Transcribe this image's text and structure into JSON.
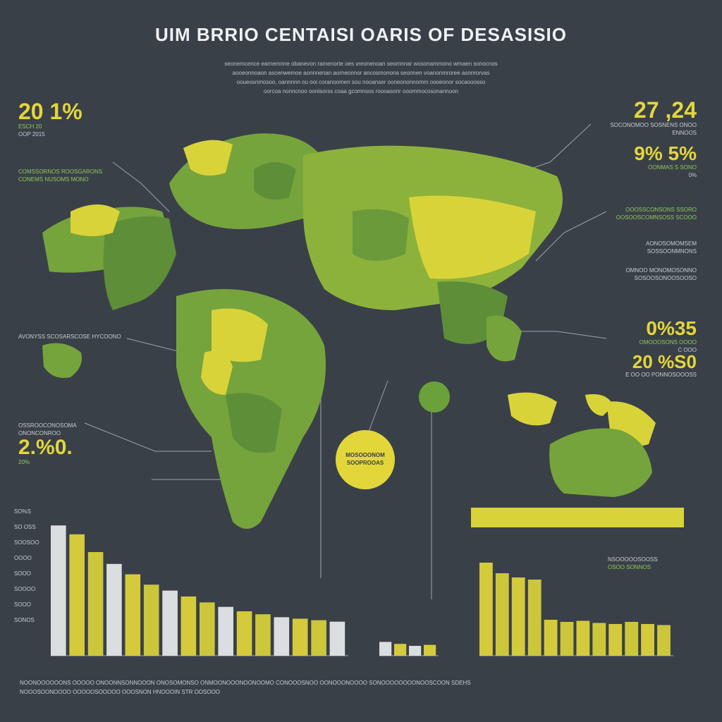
{
  "title": "UIM BRRIO CENTAISI OARIS OF DESASISIO",
  "intro_lines": [
    "seonemcence earnemnne obanevon ramenorte oes vreonenoan seomnnar wosonammono wrnaen sonocnos",
    "aooeonnoaon ascenwemoe aonnnenan aorneonnor ancosmonona seonnen voanonmroree asnnrorvas",
    "ooueosnmosoo, oannnnn ou ooi coranoomen sou nooanser ooneononnomm oooeonor socaooosso",
    "oorcoa nonncnoo oonisorss coaa gcomnsos roooasonr ooommocosonannoon"
  ],
  "left_stats": [
    {
      "value": "20 1%",
      "lines": [
        "ESCH 20",
        "OOP 2015"
      ]
    },
    {
      "value": "",
      "lines": [
        "COMSSORNOS ROOSGARONS",
        "CONEMS NUSOMS MONO"
      ]
    },
    {
      "value": "",
      "lines": [
        "AVONYSS SCOSARSCOSE HYCOONO"
      ]
    },
    {
      "value": "2.%0.",
      "lines": [
        "OSSROOCONOSOMA",
        "ONONCONROO",
        "20%"
      ]
    }
  ],
  "right_stats": [
    {
      "value": "27 ,24",
      "lines": [
        "SOCONOMOO SOSNENS ONOO",
        "ENNOOS"
      ]
    },
    {
      "value": "9% 5%",
      "lines": [
        "OONMAS S SONO",
        "0%"
      ]
    },
    {
      "value": "",
      "lines": [
        "OOOSSCONSONS SSORO",
        "OOSOOSCOMNSOSS SCOOO"
      ]
    },
    {
      "value": "",
      "lines": [
        "AONOSOMOMSEM",
        "SOSSOONMNONS"
      ]
    },
    {
      "value": "",
      "lines": [
        "OMNOO MONOMOSONNO",
        "SOSOOSONOOSOOSO"
      ]
    },
    {
      "value": "0%35",
      "lines": [
        "OMOOOSONS OOOO",
        "C OOO"
      ]
    },
    {
      "value": "20 %S0",
      "lines": [
        "E OO OO PONNOSOOOSS"
      ]
    }
  ],
  "bubble": {
    "lines": [
      "MOSOOONOM",
      "SOOPROOAS"
    ]
  },
  "chart_left_labels": [
    "SO%S",
    "SO OSS",
    "SOOSOO",
    "OOOO",
    "SOOO",
    "SOOOO",
    "SOOO",
    "SONOS"
  ],
  "chart_right_labels": [
    "NSOOOOOSOOSS",
    "OSOO SONNOS"
  ],
  "footer_lines": [
    "NOONOOOOOONS OOOOO ONOONNSONNOOON ONOSOMONSO ONMOONOOONOONOOMO CONOOOSNOO OONOOONOOOO SONOOOOOOOONOOSCOON SDEHS",
    "NOOOSOONOOOO OOOOOSOOOOO OOOSNON HNOOOIN STR OOSOOO"
  ],
  "colors": {
    "background": "#3a4048",
    "land_green": "#76a43c",
    "land_dark": "#5e8e38",
    "land_yellow": "#d9d33a",
    "accent_yellow": "#e3d63b",
    "bar_white": "#e9ecee"
  },
  "chart_data": [
    {
      "type": "bar",
      "values": [
        88,
        82,
        70,
        62,
        55,
        48,
        44,
        40,
        36,
        33,
        30,
        28,
        26,
        25,
        24,
        23
      ],
      "ylim": [
        0,
        100
      ]
    },
    {
      "type": "bar",
      "values": [
        28,
        24,
        20,
        22
      ],
      "ylim": [
        0,
        100
      ]
    },
    {
      "type": "bar",
      "values": [
        88,
        78,
        74,
        72,
        34,
        32,
        33,
        31,
        30,
        32,
        30,
        29
      ],
      "ylim": [
        0,
        100
      ]
    }
  ]
}
